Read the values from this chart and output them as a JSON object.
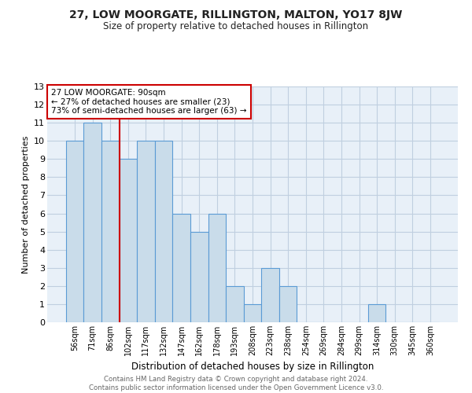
{
  "title": "27, LOW MOORGATE, RILLINGTON, MALTON, YO17 8JW",
  "subtitle": "Size of property relative to detached houses in Rillington",
  "xlabel": "Distribution of detached houses by size in Rillington",
  "ylabel": "Number of detached properties",
  "bin_labels": [
    "56sqm",
    "71sqm",
    "86sqm",
    "102sqm",
    "117sqm",
    "132sqm",
    "147sqm",
    "162sqm",
    "178sqm",
    "193sqm",
    "208sqm",
    "223sqm",
    "238sqm",
    "254sqm",
    "269sqm",
    "284sqm",
    "299sqm",
    "314sqm",
    "330sqm",
    "345sqm",
    "360sqm"
  ],
  "bar_heights": [
    10,
    11,
    10,
    9,
    10,
    10,
    6,
    5,
    6,
    2,
    1,
    3,
    2,
    0,
    0,
    0,
    0,
    1,
    0,
    0,
    0
  ],
  "bar_color": "#c9dcea",
  "bar_edgecolor": "#5b9bd5",
  "marker_index": 2,
  "marker_label": "27 LOW MOORGATE: 90sqm",
  "arrow_left_text": "← 27% of detached houses are smaller (23)",
  "arrow_right_text": "73% of semi-detached houses are larger (63) →",
  "vline_color": "#cc0000",
  "annotation_box_edgecolor": "#cc0000",
  "ylim": [
    0,
    13
  ],
  "yticks": [
    0,
    1,
    2,
    3,
    4,
    5,
    6,
    7,
    8,
    9,
    10,
    11,
    12,
    13
  ],
  "grid_color": "#c0cfe0",
  "footer_line1": "Contains HM Land Registry data © Crown copyright and database right 2024.",
  "footer_line2": "Contains public sector information licensed under the Open Government Licence v3.0.",
  "background_color": "#ffffff",
  "plot_bg_color": "#e8f0f8"
}
